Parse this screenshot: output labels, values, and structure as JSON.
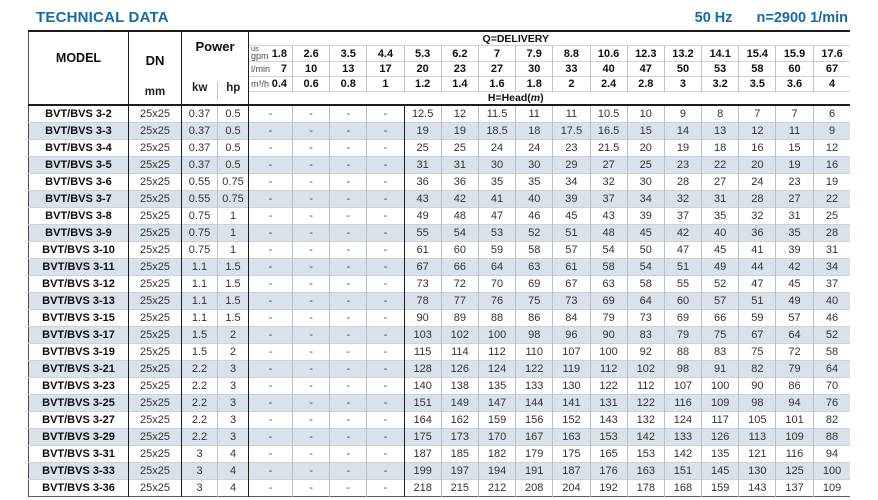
{
  "page": {
    "title": "TECHNICAL DATA",
    "frequency": "50 Hz",
    "speed": "n=2900 1/min",
    "accent_color": "#186aa4",
    "stripe_color": "#d9e2ea"
  },
  "table": {
    "model_header": "MODEL",
    "dn_header": "DN",
    "dn_unit": "mm",
    "power_header": "Power",
    "kw_unit": "kw",
    "hp_unit": "hp",
    "delivery_label": "Q=DELIVERY",
    "head_prefix": "H=Head(",
    "head_unit_italic": "m",
    "head_suffix": ")",
    "unit_rows": [
      {
        "label_top": "us",
        "label": "gpm",
        "values": [
          "1.8",
          "2.6",
          "3.5",
          "4.4",
          "5.3",
          "6.2",
          "7",
          "7.9",
          "8.8",
          "10.6",
          "12.3",
          "13.2",
          "14.1",
          "15.4",
          "15.9",
          "17.6"
        ]
      },
      {
        "label": "l/min",
        "values": [
          "7",
          "10",
          "13",
          "17",
          "20",
          "23",
          "27",
          "30",
          "33",
          "40",
          "47",
          "50",
          "53",
          "58",
          "60",
          "67"
        ]
      },
      {
        "label": "m³/h",
        "values": [
          "0.4",
          "0.6",
          "0.8",
          "1",
          "1.2",
          "1.4",
          "1.6",
          "1.8",
          "2",
          "2.4",
          "2.8",
          "3",
          "3.2",
          "3.5",
          "3.6",
          "4"
        ]
      }
    ],
    "rows": [
      {
        "model": "BVT/BVS 3-2",
        "dn": "25x25",
        "kw": "0.37",
        "hp": "0.5",
        "head": [
          "-",
          "-",
          "-",
          "-",
          "12.5",
          "12",
          "11.5",
          "11",
          "11",
          "10.5",
          "10",
          "9",
          "8",
          "7",
          "7",
          "6"
        ]
      },
      {
        "model": "BVT/BVS 3-3",
        "dn": "25x25",
        "kw": "0.37",
        "hp": "0.5",
        "head": [
          "-",
          "-",
          "-",
          "-",
          "19",
          "19",
          "18.5",
          "18",
          "17.5",
          "16.5",
          "15",
          "14",
          "13",
          "12",
          "11",
          "9"
        ]
      },
      {
        "model": "BVT/BVS 3-4",
        "dn": "25x25",
        "kw": "0.37",
        "hp": "0.5",
        "head": [
          "-",
          "-",
          "-",
          "-",
          "25",
          "25",
          "24",
          "24",
          "23",
          "21.5",
          "20",
          "19",
          "18",
          "16",
          "15",
          "12"
        ]
      },
      {
        "model": "BVT/BVS 3-5",
        "dn": "25x25",
        "kw": "0.37",
        "hp": "0.5",
        "head": [
          "-",
          "-",
          "-",
          "-",
          "31",
          "31",
          "30",
          "30",
          "29",
          "27",
          "25",
          "23",
          "22",
          "20",
          "19",
          "16"
        ]
      },
      {
        "model": "BVT/BVS 3-6",
        "dn": "25x25",
        "kw": "0.55",
        "hp": "0.75",
        "head": [
          "-",
          "-",
          "-",
          "-",
          "36",
          "36",
          "35",
          "35",
          "34",
          "32",
          "30",
          "28",
          "27",
          "24",
          "23",
          "19"
        ]
      },
      {
        "model": "BVT/BVS 3-7",
        "dn": "25x25",
        "kw": "0.55",
        "hp": "0.75",
        "head": [
          "-",
          "-",
          "-",
          "-",
          "43",
          "42",
          "41",
          "40",
          "39",
          "37",
          "34",
          "32",
          "31",
          "28",
          "27",
          "22"
        ]
      },
      {
        "model": "BVT/BVS 3-8",
        "dn": "25x25",
        "kw": "0.75",
        "hp": "1",
        "head": [
          "-",
          "-",
          "-",
          "-",
          "49",
          "48",
          "47",
          "46",
          "45",
          "43",
          "39",
          "37",
          "35",
          "32",
          "31",
          "25"
        ]
      },
      {
        "model": "BVT/BVS 3-9",
        "dn": "25x25",
        "kw": "0.75",
        "hp": "1",
        "head": [
          "-",
          "-",
          "-",
          "-",
          "55",
          "54",
          "53",
          "52",
          "51",
          "48",
          "45",
          "42",
          "40",
          "36",
          "35",
          "28"
        ]
      },
      {
        "model": "BVT/BVS 3-10",
        "dn": "25x25",
        "kw": "0.75",
        "hp": "1",
        "head": [
          "-",
          "-",
          "-",
          "-",
          "61",
          "60",
          "59",
          "58",
          "57",
          "54",
          "50",
          "47",
          "45",
          "41",
          "39",
          "31"
        ]
      },
      {
        "model": "BVT/BVS 3-11",
        "dn": "25x25",
        "kw": "1.1",
        "hp": "1.5",
        "head": [
          "-",
          "-",
          "-",
          "-",
          "67",
          "66",
          "64",
          "63",
          "61",
          "58",
          "54",
          "51",
          "49",
          "44",
          "42",
          "34"
        ]
      },
      {
        "model": "BVT/BVS 3-12",
        "dn": "25x25",
        "kw": "1.1",
        "hp": "1.5",
        "head": [
          "-",
          "-",
          "-",
          "-",
          "73",
          "72",
          "70",
          "69",
          "67",
          "63",
          "58",
          "55",
          "52",
          "47",
          "45",
          "37"
        ]
      },
      {
        "model": "BVT/BVS 3-13",
        "dn": "25x25",
        "kw": "1.1",
        "hp": "1.5",
        "head": [
          "-",
          "-",
          "-",
          "-",
          "78",
          "77",
          "76",
          "75",
          "73",
          "69",
          "64",
          "60",
          "57",
          "51",
          "49",
          "40"
        ]
      },
      {
        "model": "BVT/BVS 3-15",
        "dn": "25x25",
        "kw": "1.1",
        "hp": "1.5",
        "head": [
          "-",
          "-",
          "-",
          "-",
          "90",
          "89",
          "88",
          "86",
          "84",
          "79",
          "73",
          "69",
          "66",
          "59",
          "57",
          "46"
        ]
      },
      {
        "model": "BVT/BVS 3-17",
        "dn": "25x25",
        "kw": "1.5",
        "hp": "2",
        "head": [
          "-",
          "-",
          "-",
          "-",
          "103",
          "102",
          "100",
          "98",
          "96",
          "90",
          "83",
          "79",
          "75",
          "67",
          "64",
          "52"
        ]
      },
      {
        "model": "BVT/BVS 3-19",
        "dn": "25x25",
        "kw": "1.5",
        "hp": "2",
        "head": [
          "-",
          "-",
          "-",
          "-",
          "115",
          "114",
          "112",
          "110",
          "107",
          "100",
          "92",
          "88",
          "83",
          "75",
          "72",
          "58"
        ]
      },
      {
        "model": "BVT/BVS 3-21",
        "dn": "25x25",
        "kw": "2.2",
        "hp": "3",
        "head": [
          "-",
          "-",
          "-",
          "-",
          "128",
          "126",
          "124",
          "122",
          "119",
          "112",
          "102",
          "98",
          "91",
          "82",
          "79",
          "64"
        ]
      },
      {
        "model": "BVT/BVS 3-23",
        "dn": "25x25",
        "kw": "2.2",
        "hp": "3",
        "head": [
          "-",
          "-",
          "-",
          "-",
          "140",
          "138",
          "135",
          "133",
          "130",
          "122",
          "112",
          "107",
          "100",
          "90",
          "86",
          "70"
        ]
      },
      {
        "model": "BVT/BVS 3-25",
        "dn": "25x25",
        "kw": "2.2",
        "hp": "3",
        "head": [
          "-",
          "-",
          "-",
          "-",
          "151",
          "149",
          "147",
          "144",
          "141",
          "131",
          "122",
          "116",
          "109",
          "98",
          "94",
          "76"
        ]
      },
      {
        "model": "BVT/BVS 3-27",
        "dn": "25x25",
        "kw": "2.2",
        "hp": "3",
        "head": [
          "-",
          "-",
          "-",
          "-",
          "164",
          "162",
          "159",
          "156",
          "152",
          "143",
          "132",
          "124",
          "117",
          "105",
          "101",
          "82"
        ]
      },
      {
        "model": "BVT/BVS 3-29",
        "dn": "25x25",
        "kw": "2.2",
        "hp": "3",
        "head": [
          "-",
          "-",
          "-",
          "-",
          "175",
          "173",
          "170",
          "167",
          "163",
          "153",
          "142",
          "133",
          "126",
          "113",
          "109",
          "88"
        ]
      },
      {
        "model": "BVT/BVS 3-31",
        "dn": "25x25",
        "kw": "3",
        "hp": "4",
        "head": [
          "-",
          "-",
          "-",
          "-",
          "187",
          "185",
          "182",
          "179",
          "175",
          "165",
          "153",
          "142",
          "135",
          "121",
          "116",
          "94"
        ]
      },
      {
        "model": "BVT/BVS 3-33",
        "dn": "25x25",
        "kw": "3",
        "hp": "4",
        "head": [
          "-",
          "-",
          "-",
          "-",
          "199",
          "197",
          "194",
          "191",
          "187",
          "176",
          "163",
          "151",
          "145",
          "130",
          "125",
          "100"
        ]
      },
      {
        "model": "BVT/BVS 3-36",
        "dn": "25x25",
        "kw": "3",
        "hp": "4",
        "head": [
          "-",
          "-",
          "-",
          "-",
          "218",
          "215",
          "212",
          "208",
          "204",
          "192",
          "178",
          "168",
          "159",
          "143",
          "137",
          "109"
        ]
      }
    ]
  }
}
